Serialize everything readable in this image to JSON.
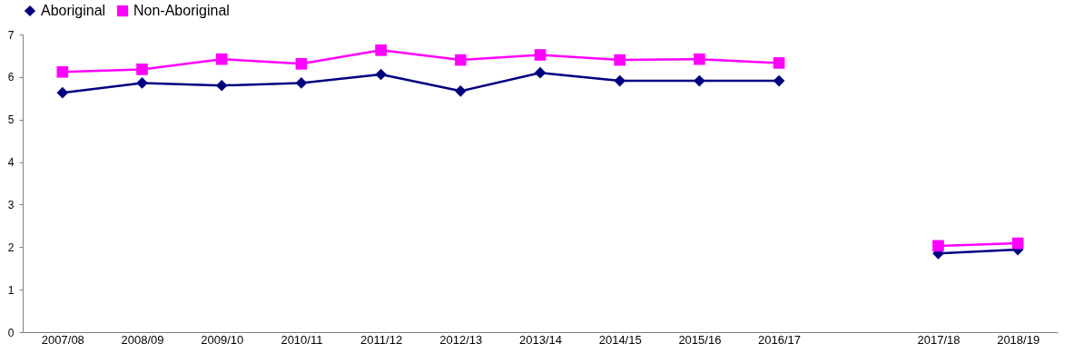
{
  "chart_data": {
    "type": "line",
    "categories": [
      "2007/08",
      "2008/09",
      "2009/10",
      "2010/11",
      "2011/12",
      "2012/13",
      "2013/14",
      "2014/15",
      "2015/16",
      "2016/17",
      null,
      "2017/18",
      "2018/19"
    ],
    "series": [
      {
        "name": "Aboriginal",
        "color": "#000080",
        "marker": "diamond",
        "values": [
          5.63,
          5.86,
          5.8,
          5.86,
          6.06,
          5.67,
          6.1,
          5.91,
          5.91,
          5.91,
          null,
          1.85,
          1.94
        ]
      },
      {
        "name": "Non-Aboriginal",
        "color": "#ff00ff",
        "marker": "square",
        "values": [
          6.12,
          6.18,
          6.42,
          6.31,
          6.63,
          6.4,
          6.52,
          6.4,
          6.42,
          6.33,
          null,
          2.03,
          2.09
        ]
      }
    ],
    "ylim": [
      0,
      7
    ],
    "yticks": [
      0,
      1,
      2,
      3,
      4,
      5,
      6,
      7
    ],
    "grid": false,
    "legend": "top"
  }
}
